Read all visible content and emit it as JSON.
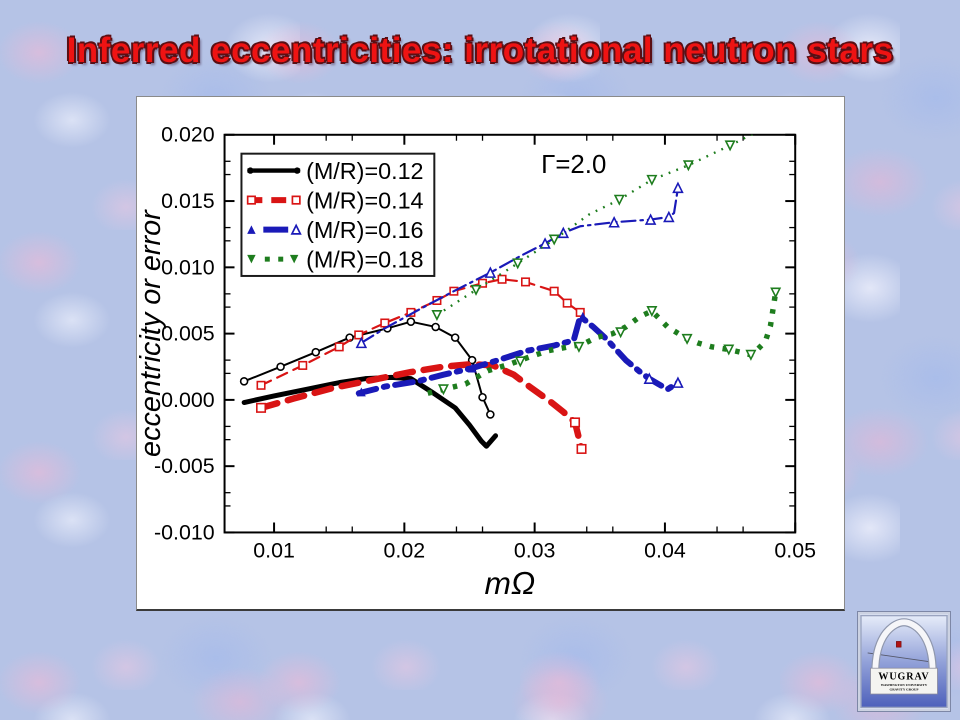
{
  "slide": {
    "title": "Inferred eccentricities: irrotational neutron stars",
    "title_color": "#ee1313"
  },
  "logo": {
    "name": "WUGRAV",
    "line1": "WASHINGTON UNIVERSITY",
    "line2": "GRAVITY GROUP"
  },
  "chart_data": {
    "type": "line",
    "title": "",
    "xlabel": "mΩ",
    "ylabel": "eccentricity or error",
    "annotation": {
      "text": "Γ=2.0",
      "x": 0.033,
      "y": 0.0178
    },
    "xlim": [
      0.0062,
      0.05
    ],
    "ylim": [
      -0.01,
      0.02
    ],
    "grid": false,
    "x_ticks": {
      "major": [
        0.01,
        0.02,
        0.03,
        0.04,
        0.05
      ],
      "labels": [
        "0.01",
        "0.02",
        "0.03",
        "0.04",
        "0.05"
      ],
      "minor_step": 0.002,
      "major_step": 0.01
    },
    "y_ticks": {
      "major": [
        -0.01,
        -0.005,
        0.0,
        0.005,
        0.01,
        0.015,
        0.02
      ],
      "labels": [
        "-0.010",
        "-0.005",
        "0.000",
        "0.005",
        "0.010",
        "0.015",
        "0.020"
      ],
      "minor_step": 0.001,
      "major_step": 0.005
    },
    "legend": {
      "position": "upper-left",
      "items": [
        {
          "label": "(M/R)=0.12",
          "color": "#000000",
          "line": "solid"
        },
        {
          "label": "(M/R)=0.14",
          "color": "#d91414",
          "line": "dashed"
        },
        {
          "label": "(M/R)=0.16",
          "color": "#1a1ab8",
          "line": "dash-dot"
        },
        {
          "label": "(M/R)=0.18",
          "color": "#1e7d1e",
          "line": "dotted"
        }
      ]
    },
    "series": [
      {
        "id": "mr012-thin",
        "group": "(M/R)=0.12",
        "variant": "thin",
        "color": "#000000",
        "line": "solid",
        "width": 2,
        "markers": [
          {
            "shape": "circle-open",
            "size": 7,
            "points": "all"
          }
        ],
        "points": [
          [
            0.0077,
            0.0014
          ],
          [
            0.0105,
            0.0025
          ],
          [
            0.0132,
            0.0036
          ],
          [
            0.0158,
            0.0047
          ],
          [
            0.0187,
            0.0054
          ],
          [
            0.0205,
            0.0059
          ],
          [
            0.0224,
            0.0055
          ],
          [
            0.0239,
            0.0047
          ],
          [
            0.0252,
            0.003
          ],
          [
            0.026,
            0.0002
          ],
          [
            0.0266,
            -0.0011
          ]
        ]
      },
      {
        "id": "mr012-thick",
        "group": "(M/R)=0.12",
        "variant": "thick",
        "color": "#000000",
        "line": "solid",
        "width": 5,
        "markers": [],
        "points": [
          [
            0.0077,
            -0.0002
          ],
          [
            0.01,
            0.0003
          ],
          [
            0.0125,
            0.0008
          ],
          [
            0.015,
            0.0013
          ],
          [
            0.017,
            0.0016
          ],
          [
            0.019,
            0.0017
          ],
          [
            0.0205,
            0.0016
          ],
          [
            0.0221,
            0.0006
          ],
          [
            0.0239,
            -0.0006
          ],
          [
            0.025,
            -0.0019
          ],
          [
            0.0259,
            -0.0031
          ],
          [
            0.0263,
            -0.0035
          ],
          [
            0.027,
            -0.0027
          ]
        ]
      },
      {
        "id": "mr014-thin",
        "group": "(M/R)=0.14",
        "variant": "thin",
        "color": "#d91414",
        "line": "dashed",
        "width": 2.2,
        "markers": [
          {
            "shape": "square-open",
            "size": 7.5,
            "points": "all"
          }
        ],
        "points": [
          [
            0.009,
            0.0011
          ],
          [
            0.0122,
            0.0026
          ],
          [
            0.015,
            0.004
          ],
          [
            0.0165,
            0.0049
          ],
          [
            0.0185,
            0.0058
          ],
          [
            0.0205,
            0.0066
          ],
          [
            0.0225,
            0.0075
          ],
          [
            0.0238,
            0.0082
          ],
          [
            0.026,
            0.0088
          ],
          [
            0.0275,
            0.0091
          ],
          [
            0.0293,
            0.0089
          ],
          [
            0.0315,
            0.0082
          ],
          [
            0.0325,
            0.0073
          ],
          [
            0.0335,
            0.0066
          ]
        ]
      },
      {
        "id": "mr014-thick",
        "group": "(M/R)=0.14",
        "variant": "thick",
        "color": "#d91414",
        "line": "dashed",
        "width": 6.5,
        "markers": [
          {
            "shape": "square-open",
            "size": 8.5,
            "points": [
              [
                0.009,
                -0.0006
              ],
              [
                0.0331,
                -0.0017
              ],
              [
                0.0336,
                -0.0037
              ]
            ]
          }
        ],
        "points": [
          [
            0.009,
            -0.0006
          ],
          [
            0.0115,
            0.0001
          ],
          [
            0.0145,
            0.0009
          ],
          [
            0.0175,
            0.0015
          ],
          [
            0.0205,
            0.0021
          ],
          [
            0.023,
            0.0025
          ],
          [
            0.0252,
            0.0027
          ],
          [
            0.0268,
            0.0026
          ],
          [
            0.0284,
            0.0019
          ],
          [
            0.0296,
            0.001
          ],
          [
            0.0313,
            -0.0002
          ],
          [
            0.0322,
            -0.0009
          ],
          [
            0.0331,
            -0.0017
          ],
          [
            0.0336,
            -0.0037
          ]
        ]
      },
      {
        "id": "mr016-thin",
        "group": "(M/R)=0.16",
        "variant": "thin",
        "color": "#1a1ab8",
        "line": "dash-dot",
        "width": 2.2,
        "markers": [
          {
            "shape": "triangle-up-open",
            "size": 9,
            "points": [
              [
                0.0167,
                0.0043
              ],
              [
                0.0266,
                0.0096
              ],
              [
                0.0308,
                0.0118
              ],
              [
                0.0322,
                0.0126
              ],
              [
                0.0361,
                0.0134
              ],
              [
                0.0389,
                0.0136
              ],
              [
                0.0403,
                0.0138
              ],
              [
                0.041,
                0.016
              ]
            ]
          }
        ],
        "points": [
          [
            0.0167,
            0.0043
          ],
          [
            0.0185,
            0.0054
          ],
          [
            0.0211,
            0.0068
          ],
          [
            0.0238,
            0.0082
          ],
          [
            0.0266,
            0.0096
          ],
          [
            0.029,
            0.0109
          ],
          [
            0.0308,
            0.0118
          ],
          [
            0.0322,
            0.0126
          ],
          [
            0.0335,
            0.0131
          ],
          [
            0.0361,
            0.0134
          ],
          [
            0.0389,
            0.0136
          ],
          [
            0.0403,
            0.0138
          ],
          [
            0.0407,
            0.0141
          ],
          [
            0.041,
            0.016
          ]
        ]
      },
      {
        "id": "mr016-thick",
        "group": "(M/R)=0.16",
        "variant": "thick",
        "color": "#1a1ab8",
        "line": "dash-dot",
        "width": 6,
        "markers": [
          {
            "shape": "triangle-up-filled",
            "size": 9,
            "points": [
              [
                0.0167,
                0.0006
              ],
              [
                0.0252,
                0.0024
              ],
              [
                0.0337,
                0.0063
              ]
            ]
          },
          {
            "shape": "triangle-up-open",
            "size": 9,
            "points": [
              [
                0.0388,
                0.0016
              ],
              [
                0.041,
                0.0013
              ]
            ]
          }
        ],
        "points": [
          [
            0.0165,
            0.0005
          ],
          [
            0.0185,
            0.001
          ],
          [
            0.021,
            0.0014
          ],
          [
            0.023,
            0.0019
          ],
          [
            0.0252,
            0.0024
          ],
          [
            0.0272,
            0.003
          ],
          [
            0.0294,
            0.0037
          ],
          [
            0.0315,
            0.0041
          ],
          [
            0.033,
            0.0045
          ],
          [
            0.0335,
            0.0063
          ],
          [
            0.0345,
            0.0055
          ],
          [
            0.0355,
            0.0046
          ],
          [
            0.037,
            0.003
          ],
          [
            0.0381,
            0.0021
          ],
          [
            0.0388,
            0.0016
          ],
          [
            0.0395,
            0.0012
          ],
          [
            0.0402,
            0.0008
          ],
          [
            0.041,
            0.0013
          ]
        ]
      },
      {
        "id": "mr018-thin",
        "group": "(M/R)=0.18",
        "variant": "thin",
        "color": "#1e7d1e",
        "line": "dotted",
        "width": 2.4,
        "markers": [
          {
            "shape": "triangle-down-open",
            "size": 8.5,
            "points": [
              [
                0.0225,
                0.0064
              ],
              [
                0.0255,
                0.0083
              ],
              [
                0.0287,
                0.0103
              ],
              [
                0.0315,
                0.0121
              ],
              [
                0.0365,
                0.0151
              ],
              [
                0.039,
                0.0166
              ],
              [
                0.0418,
                0.0177
              ],
              [
                0.045,
                0.0192
              ]
            ]
          }
        ],
        "points": [
          [
            0.0225,
            0.0064
          ],
          [
            0.0255,
            0.0083
          ],
          [
            0.0287,
            0.0103
          ],
          [
            0.0315,
            0.0121
          ],
          [
            0.0342,
            0.014
          ],
          [
            0.0365,
            0.0151
          ],
          [
            0.039,
            0.0166
          ],
          [
            0.0418,
            0.0177
          ],
          [
            0.0435,
            0.0185
          ],
          [
            0.045,
            0.0192
          ],
          [
            0.0468,
            0.0201
          ]
        ]
      },
      {
        "id": "mr018-thick",
        "group": "(M/R)=0.18",
        "variant": "thick",
        "color": "#1e7d1e",
        "line": "dotted",
        "width": 5.5,
        "markers": [
          {
            "shape": "triangle-down-open",
            "size": 8.5,
            "points": [
              [
                0.023,
                0.0008
              ],
              [
                0.0289,
                0.0029
              ],
              [
                0.0334,
                0.004
              ],
              [
                0.0366,
                0.0051
              ],
              [
                0.039,
                0.0067
              ],
              [
                0.0417,
                0.0046
              ],
              [
                0.0449,
                0.0038
              ],
              [
                0.0466,
                0.0034
              ],
              [
                0.0485,
                0.0081
              ]
            ]
          }
        ],
        "points": [
          [
            0.0218,
            0.0005
          ],
          [
            0.023,
            0.0008
          ],
          [
            0.0247,
            0.0012
          ],
          [
            0.0264,
            0.0022
          ],
          [
            0.0281,
            0.0027
          ],
          [
            0.0295,
            0.0032
          ],
          [
            0.031,
            0.0037
          ],
          [
            0.0326,
            0.004
          ],
          [
            0.0337,
            0.0042
          ],
          [
            0.0347,
            0.0047
          ],
          [
            0.036,
            0.005
          ],
          [
            0.037,
            0.0055
          ],
          [
            0.0381,
            0.0063
          ],
          [
            0.039,
            0.0067
          ],
          [
            0.0402,
            0.0055
          ],
          [
            0.0417,
            0.0046
          ],
          [
            0.0425,
            0.0043
          ],
          [
            0.0436,
            0.004
          ],
          [
            0.0449,
            0.0038
          ],
          [
            0.0458,
            0.0036
          ],
          [
            0.0466,
            0.0034
          ],
          [
            0.0471,
            0.0038
          ],
          [
            0.0477,
            0.0044
          ],
          [
            0.0481,
            0.0056
          ],
          [
            0.0485,
            0.0081
          ]
        ]
      }
    ]
  }
}
